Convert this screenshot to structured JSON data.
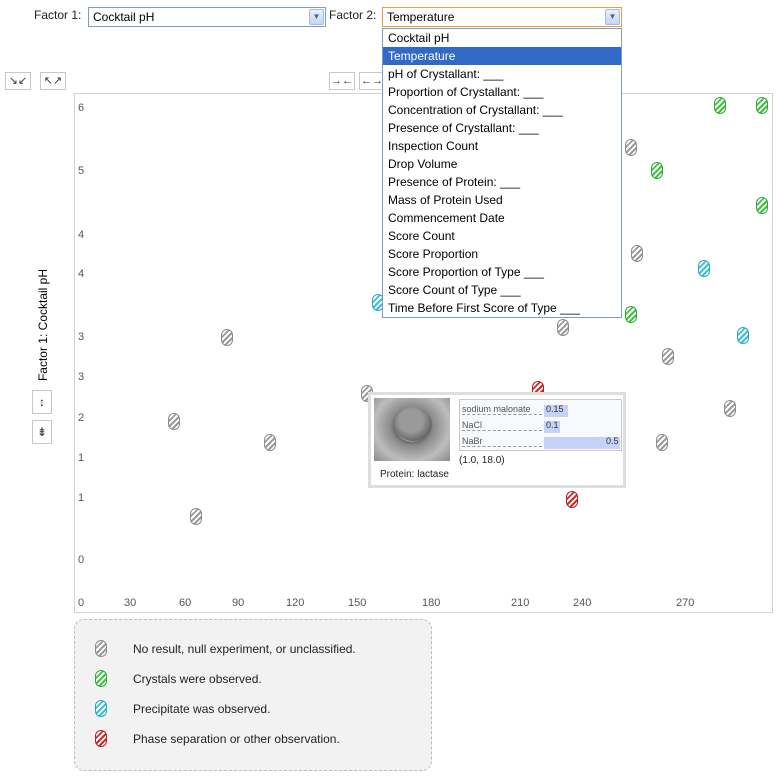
{
  "factor1": {
    "label": "Factor 1:",
    "value": "Cocktail pH"
  },
  "factor2": {
    "label": "Factor 2:",
    "value": "Temperature"
  },
  "dropdown_options": [
    "Cocktail pH",
    "Temperature",
    "pH of Crystallant: ___",
    "Proportion of Crystallant: ___",
    "Concentration of Crystallant: ___",
    "Presence of Crystallant: ___",
    "Inspection Count",
    "Drop Volume",
    "Presence of Protein: ___",
    "Mass of Protein Used",
    "Commencement Date",
    "Score Count",
    "Score Proportion",
    "Score Proportion of Type ___",
    "Score Count of Type ___",
    "Time Before First Score of Type ___"
  ],
  "dropdown_selected": "Temperature",
  "buttons": {
    "shrink_both": "↘↙",
    "expand_both": "↖↗",
    "shrink_x": "→←",
    "expand_x": "←→",
    "expand_y": "↕",
    "shrink_y": "⇟"
  },
  "axis_label_y": "Factor 1: Cocktail pH",
  "y_ticks": [
    "6",
    "5",
    "4",
    "4",
    "3",
    "3",
    "2",
    "1",
    "1",
    "0"
  ],
  "x_ticks": [
    "0",
    "30",
    "60",
    "90",
    "120",
    "150",
    "180",
    "210",
    "240",
    "270"
  ],
  "tooltip": {
    "components": [
      {
        "name": "sodium malonate",
        "value": "0.15",
        "fraction": 0.15
      },
      {
        "name": "NaCl",
        "value": "0.1",
        "fraction": 0.1
      },
      {
        "name": "NaBr",
        "value": "0.5",
        "fraction": 1.0
      }
    ],
    "coords": "(1.0, 18.0)",
    "protein": "Protein: lactase"
  },
  "legend": [
    {
      "type": "null",
      "text": "No result, null experiment, or unclassified."
    },
    {
      "type": "crystals",
      "text": "Crystals were observed."
    },
    {
      "type": "precipitate",
      "text": "Precipitate was observed."
    },
    {
      "type": "phase",
      "text": "Phase separation or other observation."
    }
  ],
  "colors": {
    "null": "#9a9a9a",
    "crystals": "#3ec43e",
    "precipitate": "#38c2d4",
    "phase": "#d02a2a",
    "selected_option": "#3169c6"
  }
}
